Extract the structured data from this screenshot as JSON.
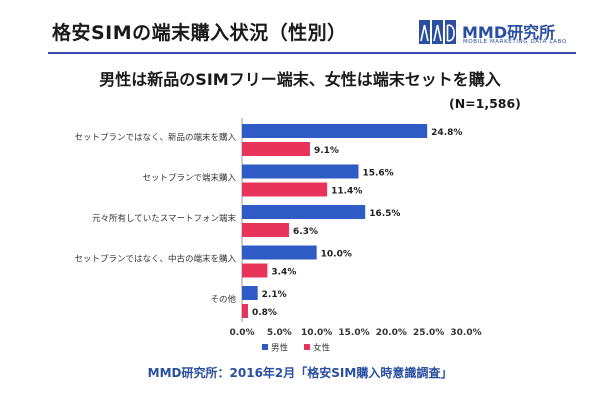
{
  "page": {
    "title": "格安SIMの端末購入状況（性別）",
    "subtitle": "男性は新品のSIMフリー端末、女性は端末セットを購入",
    "sample_note": "(N=1,586)",
    "source": "MMD研究所：2016年2月「格安SIM購入時意識調査」"
  },
  "logo": {
    "name": "MMD研究所",
    "tagline": "MOBILE MARKETING DATA LABO",
    "color": "#2a4ea0"
  },
  "chart_data": {
    "type": "bar",
    "orientation": "horizontal",
    "categories": [
      "セットプランではなく、新品の端末を購入",
      "セットプランで端末購入",
      "元々所有していたスマートフォン端末",
      "セットプランではなく、中古の端末を購入",
      "その他"
    ],
    "series": [
      {
        "name": "男性",
        "color": "#2f5bc4",
        "values": [
          24.8,
          15.6,
          16.5,
          10.0,
          2.1
        ],
        "labels": [
          "24.8%",
          "15.6%",
          "16.5%",
          "10.0%",
          "2.1%"
        ]
      },
      {
        "name": "女性",
        "color": "#e8345a",
        "values": [
          9.1,
          11.4,
          6.3,
          3.4,
          0.8
        ],
        "labels": [
          "9.1%",
          "11.4%",
          "6.3%",
          "3.4%",
          "0.8%"
        ]
      }
    ],
    "xlim": [
      0,
      30
    ],
    "xticks": [
      0,
      5,
      10,
      15,
      20,
      25,
      30
    ],
    "xtick_labels": [
      "0.0%",
      "5.0%",
      "10.0%",
      "15.0%",
      "20.0%",
      "25.0%",
      "30.0%"
    ],
    "legend_position": "bottom-left",
    "grid": false
  }
}
